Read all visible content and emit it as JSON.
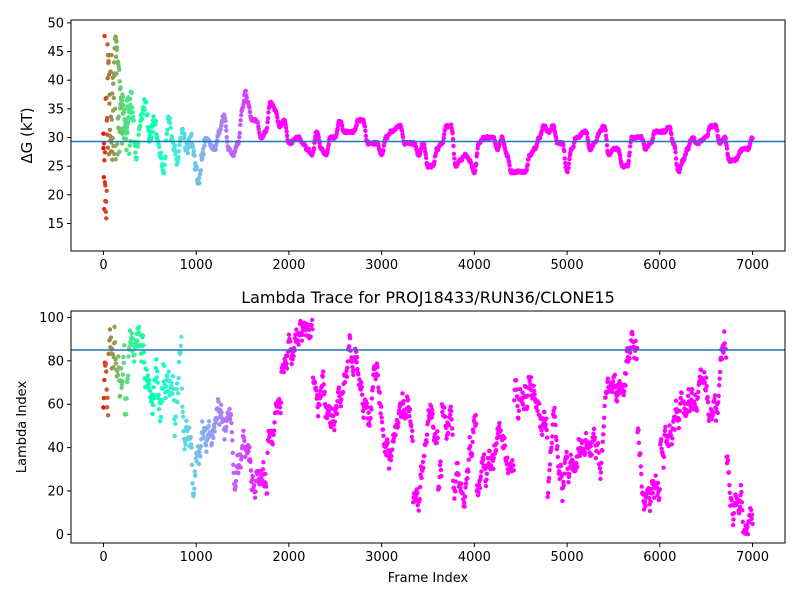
{
  "chart_data": [
    {
      "type": "scatter",
      "title": "",
      "xlabel": "",
      "ylabel": "ΔG (kT)",
      "xlim": [
        -350,
        7350
      ],
      "ylim": [
        10.2,
        50.5
      ],
      "xticks": [
        0,
        1000,
        2000,
        3000,
        4000,
        5000,
        6000,
        7000
      ],
      "yticks": [
        15,
        20,
        25,
        30,
        35,
        40,
        45,
        50
      ],
      "hline": 29.3,
      "colormap": "rainbow (early frames red → late frames violet)",
      "n_frames": 7000,
      "trace_keypoints": [
        [
          0,
          30
        ],
        [
          30,
          16
        ],
        [
          50,
          45
        ],
        [
          80,
          28
        ],
        [
          100,
          40
        ],
        [
          130,
          48
        ],
        [
          160,
          42
        ],
        [
          200,
          37
        ],
        [
          250,
          31
        ],
        [
          300,
          37
        ],
        [
          350,
          27
        ],
        [
          400,
          33
        ],
        [
          450,
          36
        ],
        [
          500,
          30
        ],
        [
          550,
          33
        ],
        [
          600,
          28
        ],
        [
          650,
          24
        ],
        [
          700,
          33
        ],
        [
          750,
          29
        ],
        [
          800,
          26
        ],
        [
          850,
          31
        ],
        [
          900,
          28
        ],
        [
          950,
          30
        ],
        [
          1000,
          24
        ],
        [
          1030,
          22
        ],
        [
          1060,
          26
        ],
        [
          1100,
          30
        ],
        [
          1200,
          28
        ],
        [
          1250,
          31
        ],
        [
          1300,
          34
        ],
        [
          1350,
          28
        ],
        [
          1400,
          27
        ],
        [
          1450,
          29
        ],
        [
          1500,
          35
        ],
        [
          1530,
          38
        ],
        [
          1560,
          36
        ],
        [
          1600,
          33
        ],
        [
          1650,
          33
        ],
        [
          1700,
          30
        ],
        [
          1750,
          31
        ],
        [
          1800,
          36
        ],
        [
          1850,
          35
        ],
        [
          1900,
          32
        ],
        [
          1950,
          33
        ],
        [
          2000,
          29
        ],
        [
          2100,
          30
        ],
        [
          2150,
          29
        ],
        [
          2200,
          28
        ],
        [
          2250,
          27
        ],
        [
          2300,
          31
        ],
        [
          2350,
          28
        ],
        [
          2400,
          27
        ],
        [
          2450,
          30
        ],
        [
          2500,
          30
        ],
        [
          2550,
          33
        ],
        [
          2600,
          31
        ],
        [
          2700,
          31
        ],
        [
          2750,
          33
        ],
        [
          2800,
          33
        ],
        [
          2850,
          29
        ],
        [
          2950,
          29
        ],
        [
          3000,
          27
        ],
        [
          3050,
          30
        ],
        [
          3100,
          31
        ],
        [
          3200,
          32
        ],
        [
          3250,
          29
        ],
        [
          3350,
          29
        ],
        [
          3400,
          27
        ],
        [
          3450,
          29
        ],
        [
          3500,
          25
        ],
        [
          3550,
          25
        ],
        [
          3600,
          28
        ],
        [
          3650,
          29
        ],
        [
          3700,
          32
        ],
        [
          3750,
          32
        ],
        [
          3800,
          25
        ],
        [
          3850,
          26
        ],
        [
          3900,
          27
        ],
        [
          3950,
          26
        ],
        [
          4000,
          24
        ],
        [
          4050,
          29
        ],
        [
          4100,
          30
        ],
        [
          4200,
          30
        ],
        [
          4250,
          28
        ],
        [
          4300,
          30
        ],
        [
          4350,
          27
        ],
        [
          4400,
          24
        ],
        [
          4550,
          24
        ],
        [
          4600,
          27
        ],
        [
          4650,
          28
        ],
        [
          4700,
          30
        ],
        [
          4750,
          32
        ],
        [
          4800,
          31
        ],
        [
          4850,
          32
        ],
        [
          4900,
          29
        ],
        [
          4950,
          29
        ],
        [
          5000,
          24
        ],
        [
          5050,
          28
        ],
        [
          5100,
          30
        ],
        [
          5200,
          31
        ],
        [
          5250,
          28
        ],
        [
          5300,
          29
        ],
        [
          5350,
          31
        ],
        [
          5400,
          32
        ],
        [
          5450,
          27
        ],
        [
          5500,
          28
        ],
        [
          5550,
          28
        ],
        [
          5600,
          25
        ],
        [
          5650,
          25
        ],
        [
          5700,
          30
        ],
        [
          5800,
          30
        ],
        [
          5850,
          28
        ],
        [
          5900,
          29
        ],
        [
          5950,
          31
        ],
        [
          6050,
          31
        ],
        [
          6100,
          32
        ],
        [
          6150,
          29
        ],
        [
          6200,
          24
        ],
        [
          6250,
          26
        ],
        [
          6300,
          28
        ],
        [
          6350,
          30
        ],
        [
          6400,
          29
        ],
        [
          6500,
          30
        ],
        [
          6550,
          32
        ],
        [
          6600,
          32
        ],
        [
          6650,
          29
        ],
        [
          6700,
          30
        ],
        [
          6750,
          26
        ],
        [
          6800,
          26
        ],
        [
          6900,
          28
        ],
        [
          6950,
          28
        ],
        [
          7000,
          30
        ]
      ],
      "grid": false
    },
    {
      "type": "scatter",
      "title": "Lambda Trace for PROJ18433/RUN36/CLONE15",
      "xlabel": "Frame Index",
      "ylabel": "Lambda Index",
      "xlim": [
        -350,
        7350
      ],
      "ylim": [
        -4,
        103
      ],
      "xticks": [
        0,
        1000,
        2000,
        3000,
        4000,
        5000,
        6000,
        7000
      ],
      "yticks": [
        0,
        20,
        40,
        60,
        80,
        100
      ],
      "hline": 85,
      "colormap": "rainbow (early frames red → late frames violet)",
      "n_frames": 7000,
      "lambda_range": [
        0,
        99
      ],
      "grid": false
    }
  ]
}
